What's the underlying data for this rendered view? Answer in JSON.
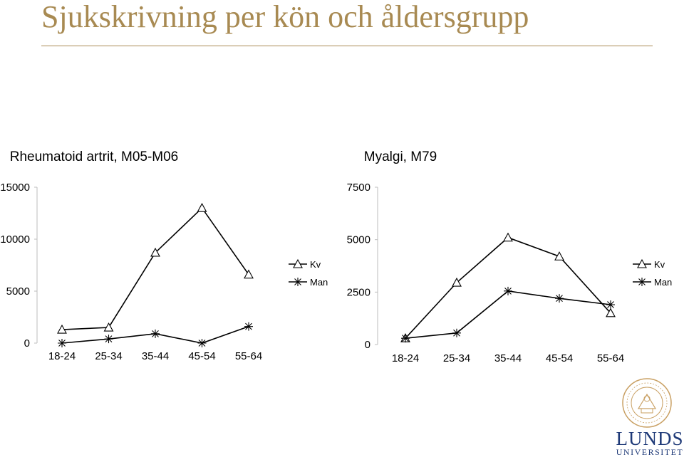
{
  "page": {
    "title": "Sjukskrivning per kön och åldersgrupp",
    "colors": {
      "title": "#a88a52",
      "series": "#000000",
      "logo": "#1f3a78"
    }
  },
  "chart_data": [
    {
      "type": "line",
      "title": "Rheumatoid artrit, M05-M06",
      "categories": [
        "18-24",
        "25-34",
        "35-44",
        "45-54",
        "55-64"
      ],
      "ylim": [
        0,
        15000
      ],
      "yticks": [
        "0",
        "5000",
        "10000",
        "15000"
      ],
      "grid": false,
      "legend": "right",
      "series": [
        {
          "name": "Kv",
          "marker": "triangle",
          "values": [
            1300,
            1500,
            8700,
            13000,
            6600
          ]
        },
        {
          "name": "Man",
          "marker": "star",
          "values": [
            0,
            400,
            900,
            0,
            1600
          ]
        }
      ]
    },
    {
      "type": "line",
      "title": "Myalgi, M79",
      "categories": [
        "18-24",
        "25-34",
        "35-44",
        "45-54",
        "55-64"
      ],
      "ylim": [
        0,
        7500
      ],
      "yticks": [
        "0",
        "2500",
        "5000",
        "7500"
      ],
      "grid": false,
      "legend": "right",
      "series": [
        {
          "name": "Kv",
          "marker": "triangle",
          "values": [
            300,
            2950,
            5100,
            4200,
            1500
          ]
        },
        {
          "name": "Man",
          "marker": "star",
          "values": [
            300,
            550,
            2550,
            2200,
            1900
          ]
        }
      ]
    }
  ],
  "logo": {
    "name": "LUNDS",
    "subtitle": "UNIVERSITET"
  }
}
